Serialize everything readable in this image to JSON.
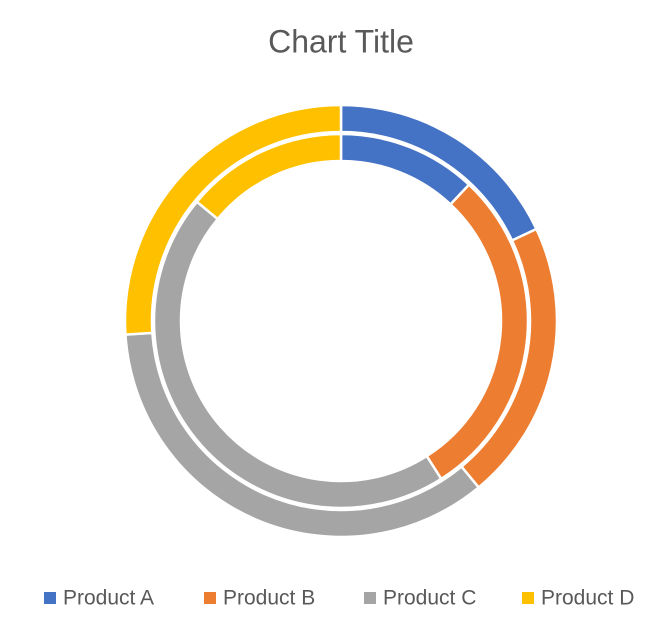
{
  "chart_data": {
    "type": "doughnut",
    "title": "Chart Title",
    "categories": [
      "Product A",
      "Product B",
      "Product C",
      "Product D"
    ],
    "colors": [
      "#4472c4",
      "#ed7d31",
      "#a5a5a5",
      "#ffc000"
    ],
    "series": [
      {
        "values": [
          12,
          29,
          45,
          14
        ]
      },
      {
        "values": [
          18,
          21,
          35,
          26
        ]
      }
    ],
    "legend": "bottom"
  }
}
